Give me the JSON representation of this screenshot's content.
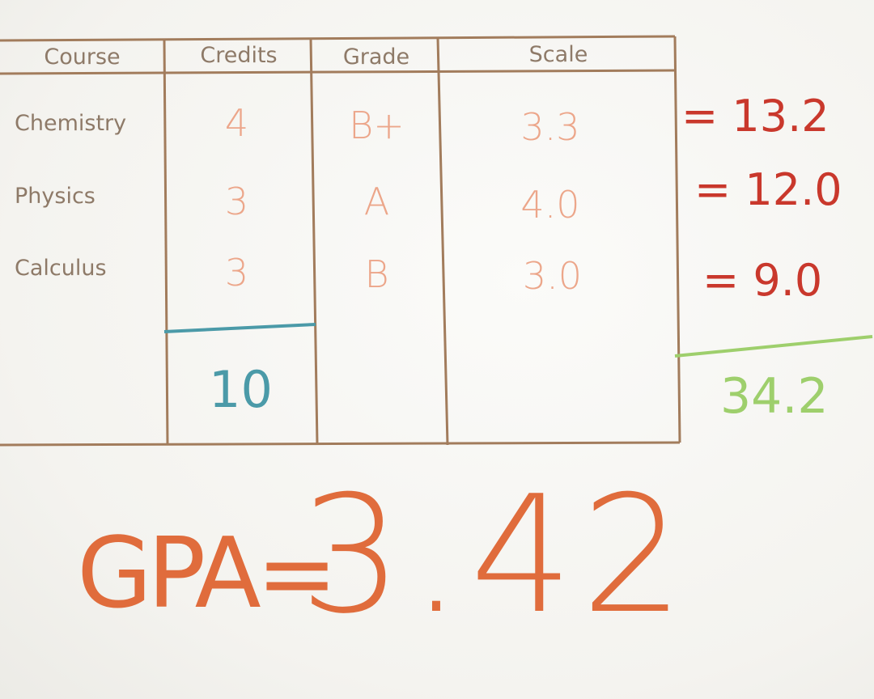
{
  "table": {
    "headers": [
      "Course",
      "Credits",
      "Grade",
      "Scale"
    ],
    "rows": [
      {
        "course": "Chemistry",
        "credits": "4",
        "grade": "B+",
        "scale": "3.3",
        "product": "= 13.2"
      },
      {
        "course": "Physics",
        "credits": "3",
        "grade": "A",
        "scale": "4.0",
        "product": "= 12.0"
      },
      {
        "course": "Calculus",
        "credits": "3",
        "grade": "B",
        "scale": "3.0",
        "product": "= 9.0"
      }
    ],
    "credits_total": "10",
    "product_total": "34.2"
  },
  "result": {
    "label": "GPA=",
    "value": "3.42"
  },
  "colors": {
    "grid": "#a27c5c",
    "text": "#8e7a68",
    "handwriting": "#eca68a",
    "products": "#c9382c",
    "credits_total": "#4b9aa8",
    "product_total": "#9ecf6c",
    "gpa": "#e06c3c"
  }
}
